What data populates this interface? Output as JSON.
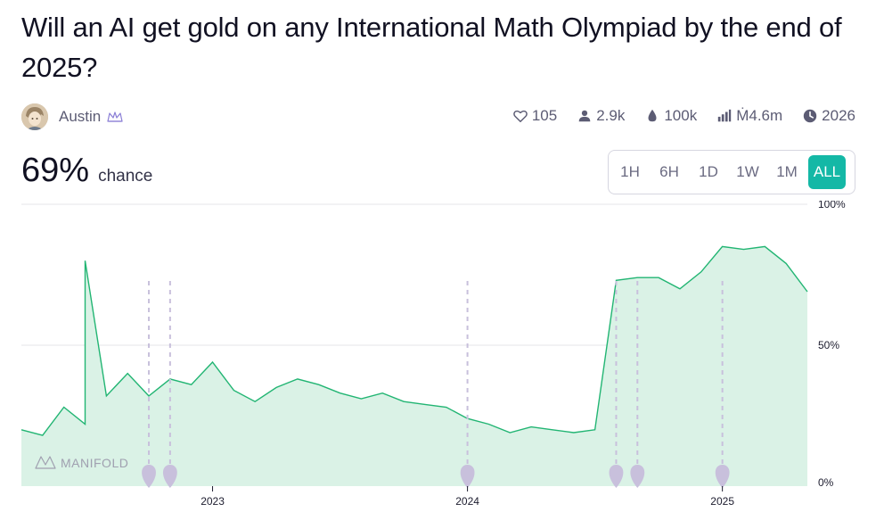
{
  "market": {
    "title": "Will an AI get gold on any International Math Olympiad by the end of 2025?",
    "creator": "Austin"
  },
  "stats": {
    "likes": "105",
    "traders": "2.9k",
    "liquidity": "100k",
    "volume": "Ṁ4.6m",
    "close": "2026"
  },
  "probability": {
    "value": "69%",
    "label": "chance"
  },
  "time_ranges": [
    "1H",
    "6H",
    "1D",
    "1W",
    "1M",
    "ALL"
  ],
  "selected_range": "ALL",
  "watermark": "MANIFOLD",
  "icons": {
    "likes": "heart-icon",
    "traders": "user-icon",
    "liquidity": "droplet-icon",
    "volume": "bar-chart-icon",
    "close": "clock-icon",
    "creator_badge": "crown-icon"
  },
  "colors": {
    "line": "#22b573",
    "fill": "#daf2e6",
    "accent": "#14b8a6",
    "marker": "#c8c0dc"
  },
  "chart_data": {
    "type": "area",
    "x_ticks": [
      "2023",
      "2024",
      "2025"
    ],
    "y_ticks": [
      "100%",
      "50%",
      "0%"
    ],
    "ylim": [
      0,
      100
    ],
    "x_range": [
      "2022-04",
      "2025-05"
    ],
    "event_markers": [
      "2022-10",
      "2022-11",
      "2024-01",
      "2024-08",
      "2024-09",
      "2025-01"
    ],
    "series": [
      {
        "x": [
          "2022-04",
          "2022-05",
          "2022-06",
          "2022-07",
          "2022-07",
          "2022-08",
          "2022-09",
          "2022-10",
          "2022-11",
          "2022-12",
          "2023-01",
          "2023-02",
          "2023-03",
          "2023-04",
          "2023-05",
          "2023-06",
          "2023-07",
          "2023-08",
          "2023-09",
          "2023-10",
          "2023-11",
          "2023-12",
          "2024-01",
          "2024-02",
          "2024-03",
          "2024-04",
          "2024-05",
          "2024-06",
          "2024-07",
          "2024-08",
          "2024-09",
          "2024-10",
          "2024-11",
          "2024-12",
          "2025-01",
          "2025-02",
          "2025-03",
          "2025-04",
          "2025-05"
        ],
        "y": [
          20,
          18,
          28,
          22,
          80,
          32,
          40,
          32,
          38,
          36,
          44,
          34,
          30,
          35,
          38,
          36,
          33,
          31,
          33,
          30,
          29,
          28,
          24,
          22,
          19,
          21,
          20,
          19,
          20,
          73,
          74,
          74,
          70,
          76,
          85,
          84,
          85,
          79,
          69
        ]
      }
    ]
  }
}
